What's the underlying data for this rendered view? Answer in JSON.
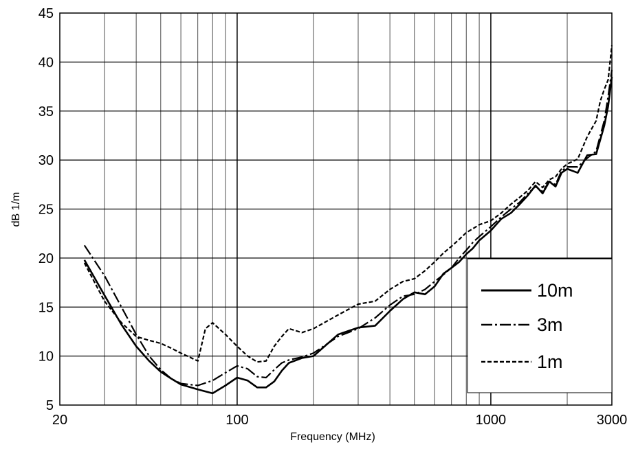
{
  "chart_data": {
    "type": "line",
    "title": "",
    "xlabel": "Frequency (MHz)",
    "ylabel": "dB 1/m",
    "x_scale": "log",
    "xlim": [
      20,
      3000
    ],
    "ylim": [
      5,
      45
    ],
    "x_tick_labels": [
      "20",
      "100",
      "1000",
      "3000"
    ],
    "y_tick_labels": [
      "5",
      "10",
      "15",
      "20",
      "25",
      "30",
      "35",
      "40",
      "45"
    ],
    "grid": true,
    "legend_position": "bottom-right",
    "series": [
      {
        "name": "10m",
        "style": "solid",
        "points": [
          [
            25,
            19.8
          ],
          [
            30,
            16.2
          ],
          [
            35,
            13.2
          ],
          [
            40,
            11.0
          ],
          [
            45,
            9.5
          ],
          [
            50,
            8.4
          ],
          [
            55,
            7.7
          ],
          [
            60,
            7.1
          ],
          [
            70,
            6.6
          ],
          [
            80,
            6.2
          ],
          [
            90,
            7.0
          ],
          [
            100,
            7.8
          ],
          [
            110,
            7.5
          ],
          [
            120,
            6.8
          ],
          [
            130,
            6.8
          ],
          [
            140,
            7.4
          ],
          [
            150,
            8.5
          ],
          [
            160,
            9.3
          ],
          [
            180,
            9.8
          ],
          [
            200,
            10.0
          ],
          [
            250,
            12.2
          ],
          [
            300,
            12.9
          ],
          [
            350,
            13.1
          ],
          [
            400,
            14.6
          ],
          [
            450,
            15.8
          ],
          [
            500,
            16.5
          ],
          [
            550,
            16.3
          ],
          [
            600,
            17.1
          ],
          [
            650,
            18.4
          ],
          [
            700,
            19.0
          ],
          [
            750,
            19.6
          ],
          [
            800,
            20.4
          ],
          [
            850,
            21.0
          ],
          [
            900,
            21.8
          ],
          [
            1000,
            22.8
          ],
          [
            1100,
            24.0
          ],
          [
            1200,
            24.6
          ],
          [
            1300,
            25.5
          ],
          [
            1400,
            26.4
          ],
          [
            1500,
            27.4
          ],
          [
            1600,
            26.6
          ],
          [
            1700,
            27.8
          ],
          [
            1800,
            27.3
          ],
          [
            1900,
            28.7
          ],
          [
            2000,
            29.1
          ],
          [
            2200,
            28.7
          ],
          [
            2400,
            30.5
          ],
          [
            2600,
            30.6
          ],
          [
            2800,
            33.5
          ],
          [
            2900,
            35.5
          ],
          [
            3000,
            38.5
          ]
        ]
      },
      {
        "name": "3m",
        "style": "dash-dot",
        "points": [
          [
            25,
            21.3
          ],
          [
            30,
            18.2
          ],
          [
            35,
            15.0
          ],
          [
            40,
            12.2
          ],
          [
            45,
            10.0
          ],
          [
            50,
            8.6
          ],
          [
            55,
            7.7
          ],
          [
            60,
            7.2
          ],
          [
            70,
            7.0
          ],
          [
            80,
            7.5
          ],
          [
            90,
            8.3
          ],
          [
            100,
            9.0
          ],
          [
            110,
            8.7
          ],
          [
            120,
            7.9
          ],
          [
            130,
            7.8
          ],
          [
            140,
            8.6
          ],
          [
            150,
            9.3
          ],
          [
            160,
            9.6
          ],
          [
            180,
            9.9
          ],
          [
            200,
            10.3
          ],
          [
            250,
            12.0
          ],
          [
            300,
            12.8
          ],
          [
            350,
            13.9
          ],
          [
            400,
            15.2
          ],
          [
            450,
            16.1
          ],
          [
            500,
            16.3
          ],
          [
            550,
            16.8
          ],
          [
            600,
            17.6
          ],
          [
            650,
            18.3
          ],
          [
            700,
            19.0
          ],
          [
            750,
            20.0
          ],
          [
            800,
            20.8
          ],
          [
            850,
            21.6
          ],
          [
            900,
            22.2
          ],
          [
            1000,
            23.2
          ],
          [
            1100,
            24.2
          ],
          [
            1200,
            25.0
          ],
          [
            1300,
            25.7
          ],
          [
            1400,
            26.6
          ],
          [
            1500,
            27.3
          ],
          [
            1600,
            26.8
          ],
          [
            1700,
            27.8
          ],
          [
            1800,
            27.5
          ],
          [
            1900,
            28.9
          ],
          [
            2000,
            29.3
          ],
          [
            2200,
            29.3
          ],
          [
            2400,
            30.2
          ],
          [
            2600,
            30.9
          ],
          [
            2800,
            34.0
          ],
          [
            2900,
            36.5
          ],
          [
            3000,
            39.2
          ]
        ]
      },
      {
        "name": "1m",
        "style": "dashed",
        "points": [
          [
            25,
            19.5
          ],
          [
            30,
            15.6
          ],
          [
            35,
            13.4
          ],
          [
            40,
            12.0
          ],
          [
            45,
            11.6
          ],
          [
            50,
            11.3
          ],
          [
            55,
            10.8
          ],
          [
            60,
            10.3
          ],
          [
            70,
            9.5
          ],
          [
            75,
            12.8
          ],
          [
            80,
            13.4
          ],
          [
            90,
            12.2
          ],
          [
            100,
            11.0
          ],
          [
            110,
            10.0
          ],
          [
            120,
            9.4
          ],
          [
            130,
            9.5
          ],
          [
            140,
            11.0
          ],
          [
            150,
            12.0
          ],
          [
            160,
            12.8
          ],
          [
            180,
            12.4
          ],
          [
            200,
            12.8
          ],
          [
            250,
            14.2
          ],
          [
            300,
            15.3
          ],
          [
            350,
            15.6
          ],
          [
            400,
            16.8
          ],
          [
            450,
            17.6
          ],
          [
            500,
            17.9
          ],
          [
            550,
            18.7
          ],
          [
            600,
            19.6
          ],
          [
            650,
            20.5
          ],
          [
            700,
            21.2
          ],
          [
            750,
            21.9
          ],
          [
            800,
            22.6
          ],
          [
            850,
            23.0
          ],
          [
            900,
            23.4
          ],
          [
            1000,
            23.8
          ],
          [
            1100,
            24.6
          ],
          [
            1200,
            25.5
          ],
          [
            1300,
            26.2
          ],
          [
            1400,
            26.9
          ],
          [
            1500,
            27.8
          ],
          [
            1600,
            27.2
          ],
          [
            1700,
            28.0
          ],
          [
            1800,
            28.3
          ],
          [
            1900,
            29.1
          ],
          [
            2000,
            29.6
          ],
          [
            2200,
            30.1
          ],
          [
            2400,
            32.4
          ],
          [
            2600,
            34.0
          ],
          [
            2700,
            36.0
          ],
          [
            2800,
            37.2
          ],
          [
            2900,
            38.2
          ],
          [
            3000,
            41.7
          ]
        ]
      }
    ]
  }
}
